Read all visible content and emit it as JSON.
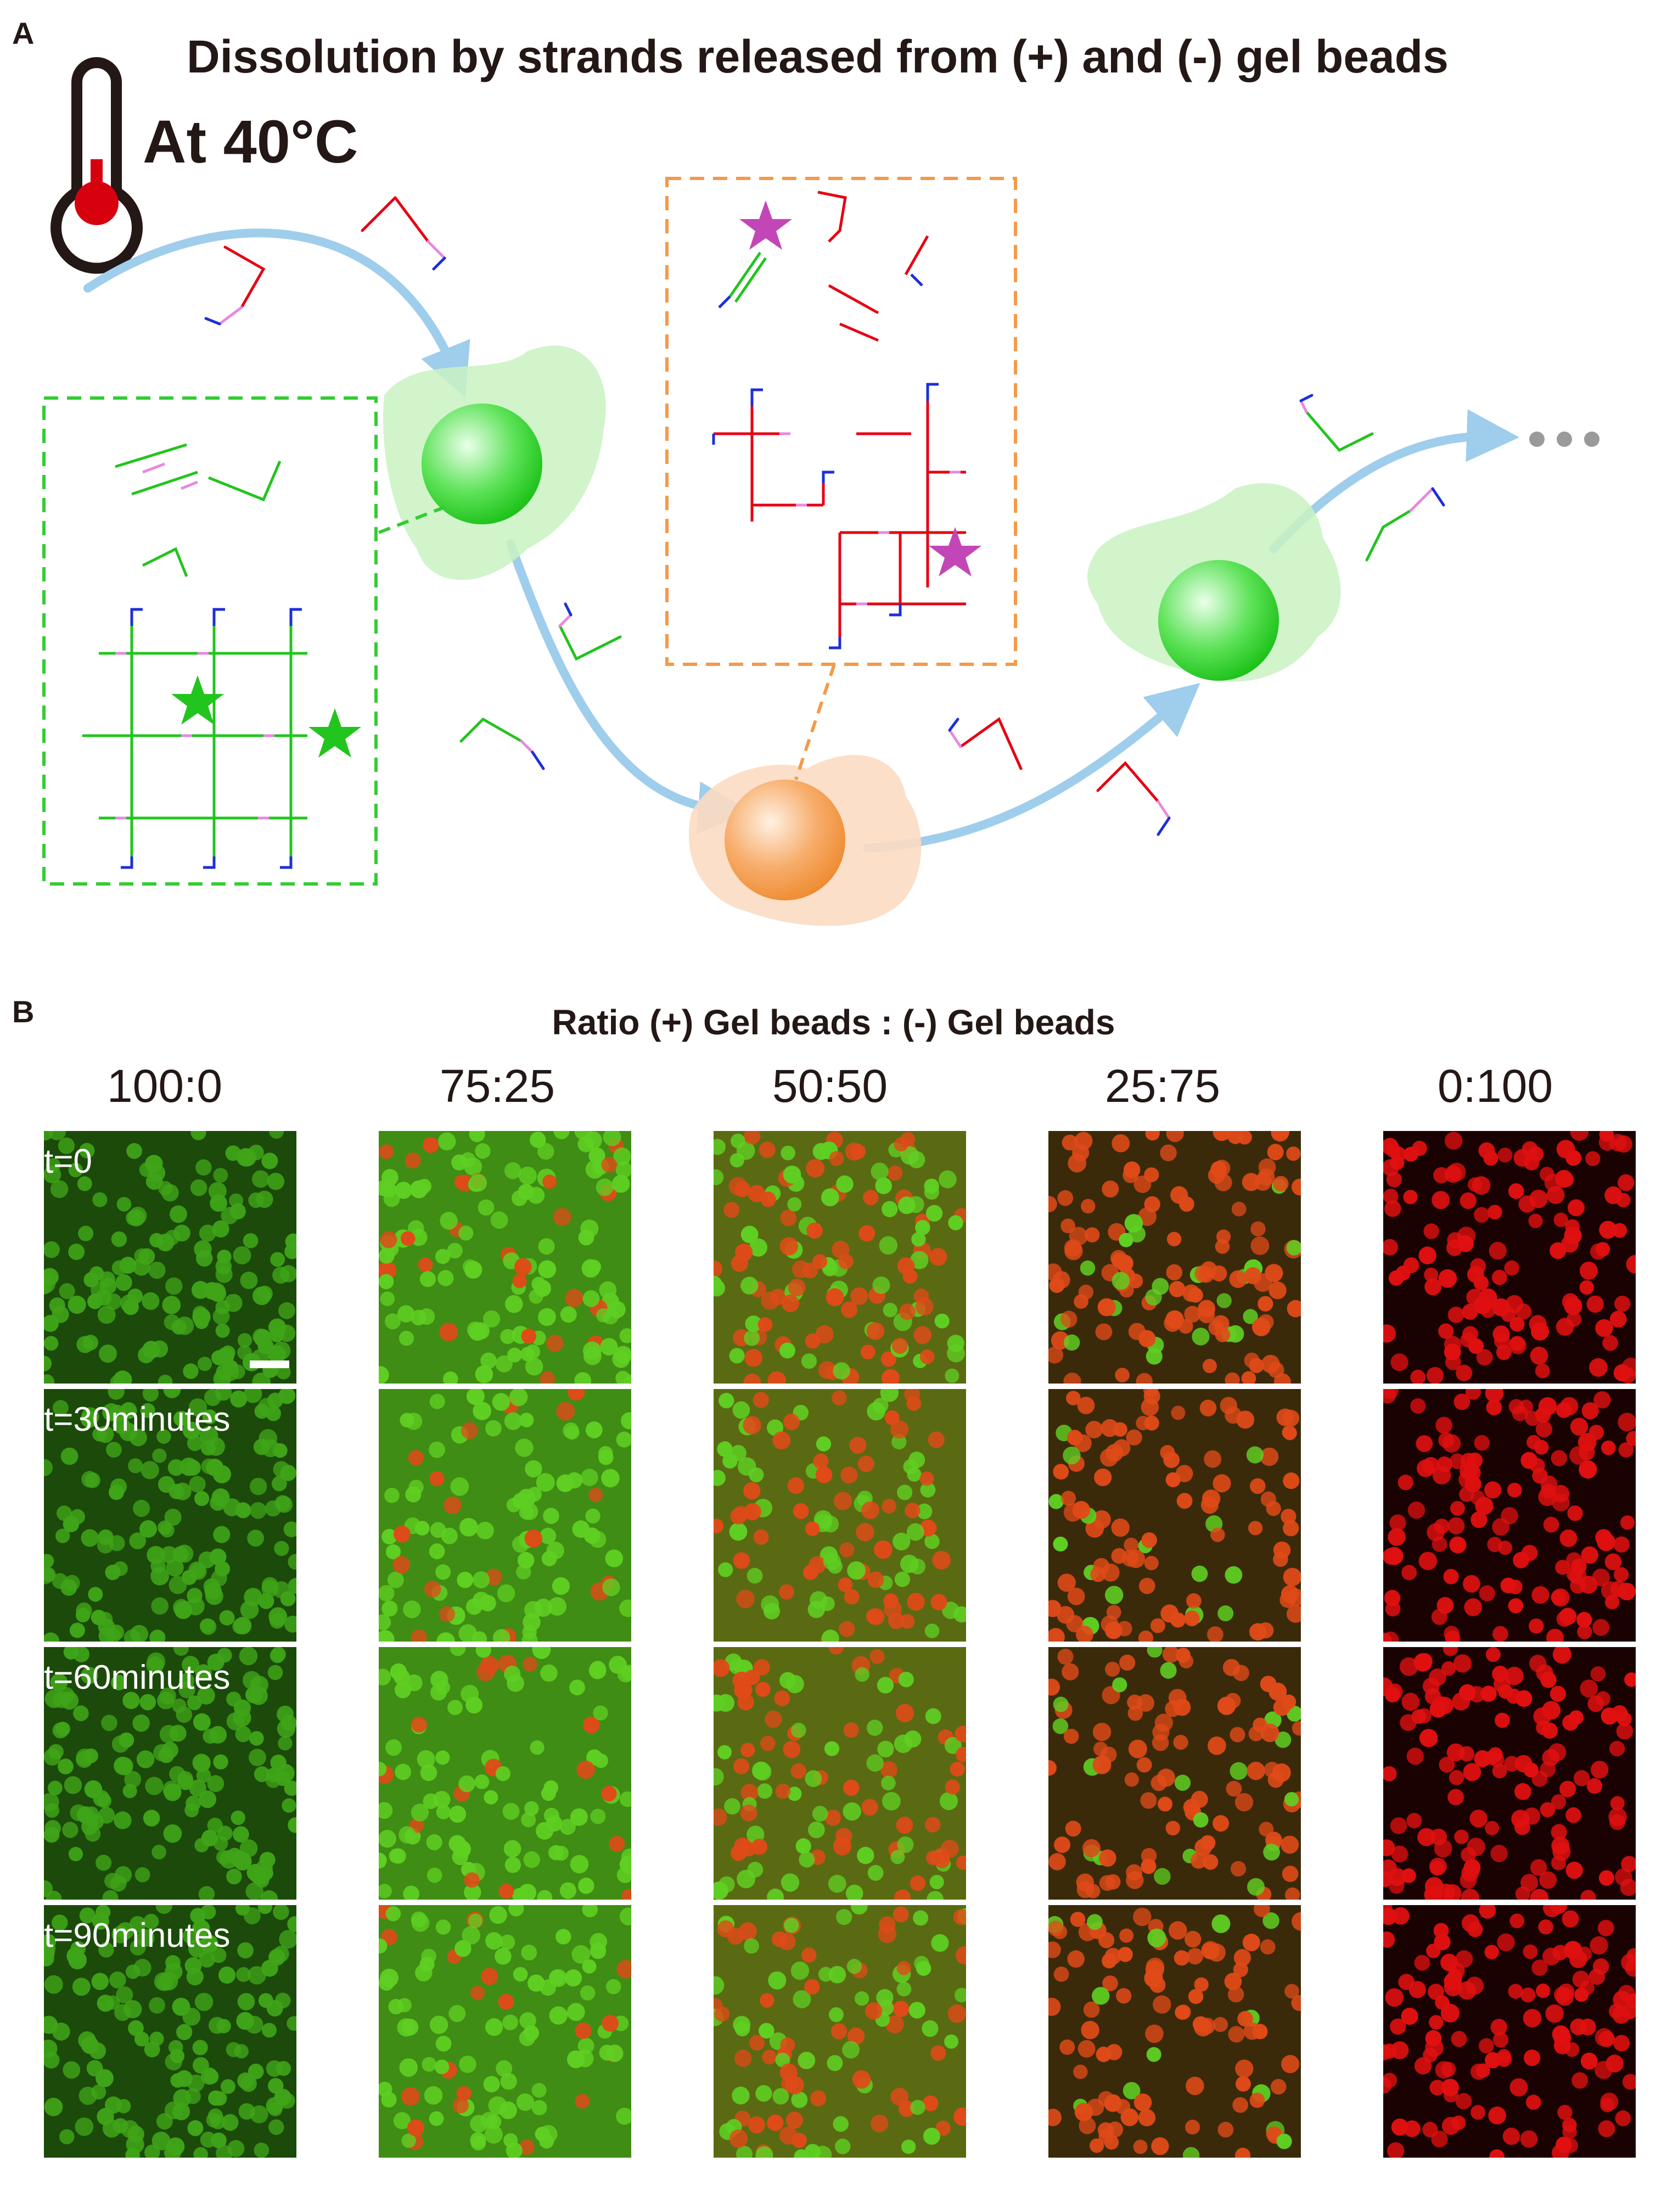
{
  "panel_a": {
    "letter": "A",
    "title": "Dissolution by strands released from (+) and (-) gel beads",
    "temperature_label": "At 40°C",
    "icons": [
      "thermometer-icon",
      "green-star-icon",
      "magenta-star-icon",
      "ellipsis-dots-icon"
    ],
    "colors": {
      "green": "#22c41e",
      "orange": "#f0963c",
      "red": "#e60012",
      "blue": "#1d2fd6",
      "pink": "#e68ae0",
      "arrow": "#9fcdec",
      "green_box": "#33cc33",
      "orange_box": "#f39a4a"
    }
  },
  "panel_b": {
    "letter": "B",
    "ratio_title": "Ratio  (+) Gel beads : (-) Gel beads",
    "ratios": [
      "100:0",
      "75:25",
      "50:50",
      "25:75",
      "0:100"
    ],
    "times": [
      "t=0",
      "t=30minutes",
      "t=60minutes",
      "t=90minutes"
    ]
  }
}
